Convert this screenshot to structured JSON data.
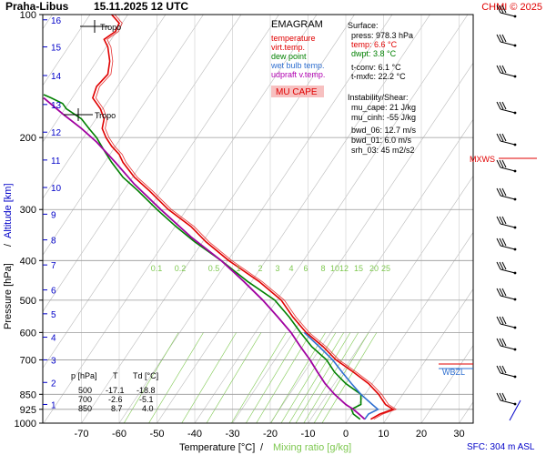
{
  "header": {
    "station": "Praha-Libus",
    "datetime": "15.11.2025 12 UTC",
    "copyright": "CHMI © 2025"
  },
  "legend": {
    "title": "EMAGRAM",
    "items": [
      {
        "label": "temperature",
        "color": "#e00000"
      },
      {
        "label": "virt.temp.",
        "color": "#e00000"
      },
      {
        "label": "dew point",
        "color": "#008000"
      },
      {
        "label": "wet bulb temp.",
        "color": "#3070d0"
      },
      {
        "label": "udpraft v.temp.",
        "color": "#b000b0"
      }
    ],
    "badge": "MU CAPE",
    "badge_bg": "#f7c0c0",
    "badge_color": "#e00000"
  },
  "surface": {
    "title": "Surface:",
    "press": "press: 978.3 hPa",
    "temp": "temp: 6.6 °C",
    "dwpt": "dwpt: 3.8 °C",
    "tconv": "t-conv: 6.1 °C",
    "tmxfc": "t-mxfc: 22.2 °C"
  },
  "instability": {
    "title": "Instability/Shear:",
    "mu_cape": "mu_cape: 21 J/kg",
    "mu_cinh": "mu_cinh: -55 J/kg",
    "bwd_06": "bwd_06: 12.7 m/s",
    "bwd_01": "bwd_01: 6.0 m/s",
    "srh_03": "srh_03: 45 m2/s2"
  },
  "levels_table": {
    "headers": [
      "p [hPa]",
      "T",
      "Td [°C]"
    ],
    "rows": [
      [
        "500",
        "-17.1",
        "-18.8"
      ],
      [
        "700",
        "-2.6",
        "-5.1"
      ],
      [
        "850",
        "8.7",
        "4.0"
      ]
    ]
  },
  "markers": {
    "tropo_upper": "Tropo",
    "tropo_lower": "Tropo",
    "mxws": "MXWS",
    "wbzl": "WBZL",
    "sfc": "SFC: 304 m ASL"
  },
  "axes": {
    "ylabel": "Pressure [hPa]",
    "ylabel_sep": "/",
    "alt_label": "Altitude [km]",
    "xlabel": "Temperature [°C]",
    "xlabel_sep": "/",
    "mix_label": "Mixing ratio [g/kg]"
  },
  "colors": {
    "temperature": "#e00000",
    "dewpoint": "#008000",
    "wetbulb": "#3070d0",
    "updraft": "#a000a0",
    "altitude": "#0000c8",
    "mixing": "#7ec850",
    "grid": "#999999",
    "isotherm": "#bbbbbb"
  },
  "chart_data": {
    "type": "line",
    "title": "EMAGRAM",
    "xlabel": "Temperature [°C]",
    "ylabel": "Pressure [hPa]",
    "xlim": [
      -80,
      40
    ],
    "ylim": [
      1000,
      100
    ],
    "x_ticks": [
      -70,
      -60,
      -50,
      -40,
      -30,
      -20,
      -10,
      0,
      10,
      20,
      30
    ],
    "y_ticks": [
      100,
      200,
      300,
      400,
      500,
      600,
      700,
      850,
      925,
      1000
    ],
    "y_scale": "log",
    "altitude_ticks_km": [
      {
        "km": "1",
        "p": 900
      },
      {
        "km": "2",
        "p": 795
      },
      {
        "km": "3",
        "p": 700
      },
      {
        "km": "4",
        "p": 616
      },
      {
        "km": "5",
        "p": 540
      },
      {
        "km": "6",
        "p": 472
      },
      {
        "km": "7",
        "p": 410
      },
      {
        "km": "8",
        "p": 356
      },
      {
        "km": "9",
        "p": 308
      },
      {
        "km": "10",
        "p": 265
      },
      {
        "km": "11",
        "p": 227
      },
      {
        "km": "12",
        "p": 194
      },
      {
        "km": "13",
        "p": 166
      },
      {
        "km": "14",
        "p": 141
      },
      {
        "km": "15",
        "p": 120
      },
      {
        "km": "16",
        "p": 103
      }
    ],
    "mixing_ratio_labels": [
      "0.1",
      "0.2",
      "0.5",
      "1",
      "2",
      "3",
      "4",
      "6",
      "8",
      "10",
      "12",
      "15",
      "20",
      "25"
    ],
    "mixing_ratio_values": [
      0.1,
      0.2,
      0.5,
      1,
      2,
      3,
      4,
      6,
      8,
      10,
      12,
      15,
      20,
      25
    ],
    "series": [
      {
        "name": "temperature",
        "points": [
          [
            6.6,
            978
          ],
          [
            9.0,
            950
          ],
          [
            12.5,
            925
          ],
          [
            10.5,
            900
          ],
          [
            8.7,
            850
          ],
          [
            6.0,
            800
          ],
          [
            2.0,
            750
          ],
          [
            -2.6,
            700
          ],
          [
            -6.0,
            650
          ],
          [
            -10.5,
            600
          ],
          [
            -14.0,
            550
          ],
          [
            -17.1,
            500
          ],
          [
            -23.0,
            450
          ],
          [
            -31.0,
            400
          ],
          [
            -37.0,
            360
          ],
          [
            -41.0,
            330
          ],
          [
            -47.0,
            300
          ],
          [
            -52.0,
            270
          ],
          [
            -56.0,
            250
          ],
          [
            -59.0,
            230
          ],
          [
            -60.0,
            220
          ],
          [
            -62.0,
            210
          ],
          [
            -63.5,
            200
          ],
          [
            -64.5,
            190
          ],
          [
            -64.0,
            180
          ],
          [
            -65.0,
            170
          ],
          [
            -67.0,
            160
          ],
          [
            -66.0,
            150
          ],
          [
            -63.0,
            140
          ],
          [
            -62.5,
            130
          ],
          [
            -63.0,
            120
          ],
          [
            -64.0,
            115
          ],
          [
            -61.0,
            110
          ],
          [
            -60.0,
            105
          ],
          [
            -62.0,
            100
          ]
        ]
      },
      {
        "name": "dew point",
        "points": [
          [
            3.8,
            978
          ],
          [
            2.0,
            950
          ],
          [
            1.5,
            925
          ],
          [
            4.0,
            900
          ],
          [
            4.0,
            850
          ],
          [
            0.0,
            800
          ],
          [
            -3.0,
            750
          ],
          [
            -5.1,
            700
          ],
          [
            -9.0,
            650
          ],
          [
            -12.0,
            600
          ],
          [
            -15.0,
            550
          ],
          [
            -18.8,
            500
          ],
          [
            -26.0,
            450
          ],
          [
            -33.0,
            400
          ],
          [
            -40.0,
            360
          ],
          [
            -45.0,
            330
          ],
          [
            -50.0,
            300
          ],
          [
            -55.0,
            270
          ],
          [
            -59.0,
            250
          ],
          [
            -62.0,
            230
          ],
          [
            -64.0,
            215
          ],
          [
            -66.0,
            200
          ],
          [
            -68.0,
            190
          ],
          [
            -70.0,
            180
          ],
          [
            -72.0,
            175
          ],
          [
            -74.0,
            170
          ],
          [
            -75.0,
            165
          ],
          [
            -78.0,
            160
          ],
          [
            -80.0,
            157
          ]
        ]
      },
      {
        "name": "wet bulb temp.",
        "points": [
          [
            5.0,
            978
          ],
          [
            6.0,
            950
          ],
          [
            8.5,
            925
          ],
          [
            7.0,
            900
          ],
          [
            4.0,
            850
          ],
          [
            1.5,
            800
          ],
          [
            -1.0,
            750
          ],
          [
            -3.5,
            700
          ],
          [
            -7.0,
            650
          ],
          [
            -11.0,
            600
          ]
        ]
      },
      {
        "name": "udpraft v.temp.",
        "points": [
          [
            5.0,
            978
          ],
          [
            3.5,
            950
          ],
          [
            2.0,
            925
          ],
          [
            0.0,
            900
          ],
          [
            -3.0,
            850
          ],
          [
            -5.5,
            800
          ],
          [
            -7.5,
            750
          ],
          [
            -9.5,
            700
          ],
          [
            -12.0,
            650
          ],
          [
            -14.5,
            600
          ],
          [
            -18.0,
            550
          ],
          [
            -22.0,
            500
          ],
          [
            -27.0,
            450
          ],
          [
            -33.0,
            400
          ],
          [
            -41.0,
            350
          ],
          [
            -49.0,
            300
          ],
          [
            -56.0,
            260
          ],
          [
            -61.0,
            230
          ],
          [
            -66.0,
            205
          ],
          [
            -70.0,
            190
          ],
          [
            -75.0,
            175
          ],
          [
            -80.0,
            160
          ]
        ]
      }
    ],
    "grid": true,
    "legend": "top-right"
  }
}
